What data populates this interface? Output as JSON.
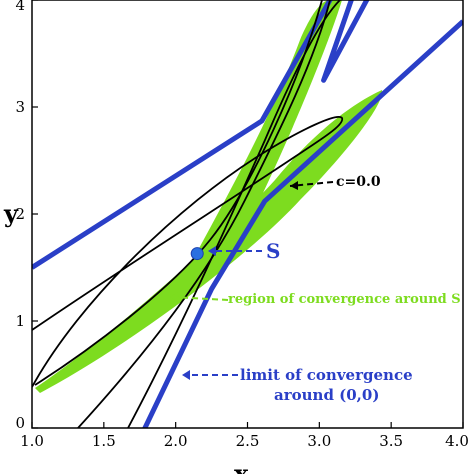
{
  "chart_data": {
    "type": "line",
    "title": "",
    "xlabel": "x",
    "ylabel": "y",
    "xlim": [
      1.0,
      4.0
    ],
    "ylim": [
      0,
      4
    ],
    "x_ticks": [
      "1.0",
      "1.5",
      "2.0",
      "2.5",
      "3.0",
      "3.5",
      "4.0"
    ],
    "y_ticks": [
      "0",
      "1",
      "2",
      "3",
      "4"
    ],
    "colors": {
      "limit": "#2a3fc7",
      "convergence": "#7ddc1f",
      "contour": "#000000",
      "point": "#2a6fe0"
    },
    "series": [
      {
        "name": "limit of convergence around (0,0) - left",
        "x": [
          1.0,
          2.6,
          3.2
        ],
        "y": [
          1.5,
          2.87,
          4.3
        ]
      },
      {
        "name": "limit of convergence around (0,0) - right",
        "x": [
          1.75,
          2.25,
          2.62,
          4.0
        ],
        "y": [
          -0.1,
          1.3,
          2.12,
          3.8
        ]
      },
      {
        "name": "limit of convergence around (0,0) - upper",
        "x": [
          3.45,
          3.03,
          3.3
        ],
        "y": [
          4.3,
          3.25,
          4.3
        ]
      },
      {
        "name": "c=0.0 lower curve",
        "x": [
          1.0,
          1.5,
          2.0,
          2.5,
          3.0,
          3.3
        ],
        "y": [
          0.88,
          1.3,
          1.73,
          2.22,
          2.78,
          3.15
        ]
      },
      {
        "name": "c=0.0 upper curve",
        "x": [
          1.65,
          2.0,
          2.4,
          2.8,
          3.25
        ],
        "y": [
          0.0,
          0.9,
          2.07,
          3.1,
          4.1
        ]
      }
    ],
    "point": {
      "label": "S",
      "x": 2.15,
      "y": 1.63
    },
    "annotations": [
      {
        "text": "c=0.0",
        "x": 3.62,
        "y": 2.02
      },
      {
        "text": "S",
        "x": 2.63,
        "y": 1.63
      },
      {
        "text": "region of convergence around S",
        "x": 2.2,
        "y": 1.17
      },
      {
        "text": "limit of convergence",
        "x": 2.43,
        "y": 0.46
      },
      {
        "text": "around (0,0)",
        "x": 2.76,
        "y": 0.28
      }
    ]
  }
}
